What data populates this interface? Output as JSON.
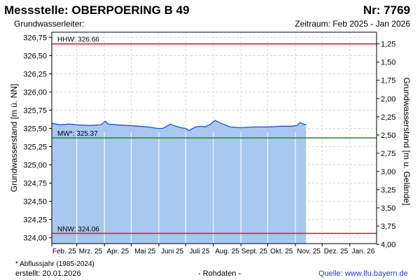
{
  "header": {
    "title": "Messstelle: OBERPOERING B 49",
    "number": "Nr: 7769",
    "aquifer": "Grundwasserleiter:",
    "period": "Zeitraum: Feb 2025 - Jan 2026"
  },
  "footer": {
    "note": "* Abflussjahr (1985-2024)",
    "created": "erstellt:  20.01.2026",
    "raw": "- Rohdaten -",
    "source": "Quelle: www.lfu.bayern.de"
  },
  "colors": {
    "fill": "#a8c8ef",
    "line": "#1f4fd0",
    "hhw": "#e8191c",
    "nnw": "#e8191c",
    "mw": "#1f8a1f",
    "grid": "#d6d6d6"
  },
  "chart_data": {
    "type": "area",
    "ylabel_left": "Grundwasserstand [m ü. NN]",
    "ylabel_right": "Grundwasserstand [m u. Gelände]",
    "ylim": [
      323.92,
      326.82
    ],
    "y_ticks_left": [
      "326,75",
      "326,50",
      "326,25",
      "326,00",
      "325,75",
      "325,50",
      "325,25",
      "325,00",
      "324,75",
      "324,50",
      "324,25",
      "324,00"
    ],
    "y_ticks_left_values": [
      326.75,
      326.5,
      326.25,
      326.0,
      325.75,
      325.5,
      325.25,
      325.0,
      324.75,
      324.5,
      324.25,
      324.0
    ],
    "y_ticks_right": [
      "1,25",
      "1,50",
      "1,75",
      "2,00",
      "2,25",
      "2,50",
      "2,75",
      "3,00",
      "3,25",
      "3,50",
      "3,75",
      "4,00"
    ],
    "y_ticks_right_values": [
      1.25,
      1.5,
      1.75,
      2.0,
      2.25,
      2.5,
      2.75,
      3.0,
      3.25,
      3.5,
      3.75,
      4.0
    ],
    "right_axis_reference": 327.91,
    "x_ticks": [
      "Feb. 25",
      "Mrz. 25",
      "Apr. 25",
      "Mai 25",
      "Juni 25",
      "Juli 25",
      "Aug. 25",
      "Sept. 25",
      "Okt. 25",
      "Nov. 25",
      "Dez. 25",
      "Jan. 26"
    ],
    "x_range": [
      "2025-02-01",
      "2026-01-31"
    ],
    "grid": true,
    "reference_lines": [
      {
        "label": "HHW: 326.66",
        "value": 326.66,
        "color": "#e8191c"
      },
      {
        "label": "MW*: 325.37",
        "value": 325.37,
        "color": "#1f8a1f"
      },
      {
        "label": "NNW: 324.06",
        "value": 324.06,
        "color": "#e8191c"
      }
    ],
    "series": [
      {
        "x": [
          "2025-02-01",
          "2025-02-10",
          "2025-02-20",
          "2025-03-01",
          "2025-03-15",
          "2025-03-28",
          "2025-04-02",
          "2025-04-05",
          "2025-04-15",
          "2025-04-28",
          "2025-05-10",
          "2025-05-20",
          "2025-05-31",
          "2025-06-05",
          "2025-06-10",
          "2025-06-14",
          "2025-06-20",
          "2025-06-26",
          "2025-07-01",
          "2025-07-05",
          "2025-07-12",
          "2025-07-18",
          "2025-07-22",
          "2025-07-28",
          "2025-08-03",
          "2025-08-10",
          "2025-08-20",
          "2025-09-01",
          "2025-09-15",
          "2025-10-01",
          "2025-10-15",
          "2025-10-28",
          "2025-11-03",
          "2025-11-06",
          "2025-11-10",
          "2025-11-13"
        ],
        "y": [
          325.57,
          325.55,
          325.56,
          325.55,
          325.54,
          325.55,
          325.6,
          325.56,
          325.55,
          325.54,
          325.53,
          325.52,
          325.5,
          325.5,
          325.53,
          325.56,
          325.53,
          325.51,
          325.5,
          325.47,
          325.52,
          325.53,
          325.52,
          325.55,
          325.61,
          325.57,
          325.52,
          325.51,
          325.52,
          325.52,
          325.53,
          325.53,
          325.54,
          325.58,
          325.56,
          325.55
        ]
      }
    ]
  }
}
